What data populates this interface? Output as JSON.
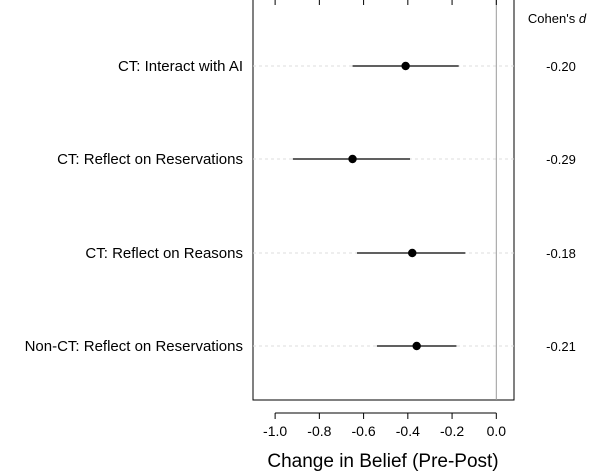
{
  "chart_data": {
    "type": "forest",
    "xlabel": "Change in Belief (Pre-Post)",
    "effect_header": "Cohen's",
    "effect_header_symbol": "d",
    "xlim": [
      -1.1,
      0.08
    ],
    "xticks": [
      -1.0,
      -0.8,
      -0.6,
      -0.4,
      -0.2,
      0.0
    ],
    "xtick_labels": [
      "-1.0",
      "-0.8",
      "-0.6",
      "-0.4",
      "-0.2",
      "0.0"
    ],
    "reference_line": 0.0,
    "grid": "dashed horizontal guides",
    "rows": [
      {
        "label": "CT: Interact with AI",
        "estimate": -0.41,
        "lower": -0.65,
        "upper": -0.17,
        "effect": "-0.20"
      },
      {
        "label": "CT: Reflect on Reservations",
        "estimate": -0.65,
        "lower": -0.92,
        "upper": -0.39,
        "effect": "-0.29"
      },
      {
        "label": "CT: Reflect on Reasons",
        "estimate": -0.38,
        "lower": -0.63,
        "upper": -0.14,
        "effect": "-0.18"
      },
      {
        "label": "Non-CT: Reflect on Reservations",
        "estimate": -0.36,
        "lower": -0.54,
        "upper": -0.18,
        "effect": "-0.21"
      }
    ]
  }
}
